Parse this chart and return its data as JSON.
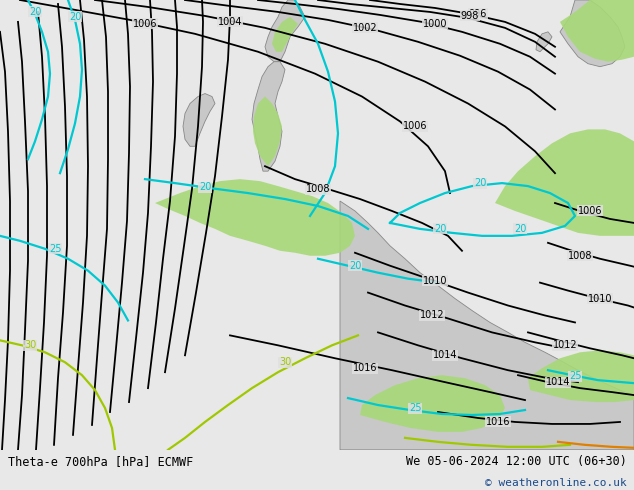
{
  "title_left": "Theta-e 700hPa [hPa] ECMWF",
  "title_right": "We 05-06-2024 12:00 UTC (06+30)",
  "copyright": "© weatheronline.co.uk",
  "bg_color": "#e8e8e8",
  "map_bg": "#e0e0e0",
  "land_color": "#c8c8c8",
  "coast_color": "#888888",
  "green_color": "#a8d878",
  "isobar_color": "#000000",
  "theta_cyan": "#00c8d0",
  "theta_yellow": "#a0c800",
  "theta_orange": "#e08000",
  "title_fontsize": 8.5,
  "label_fontsize": 7,
  "isobar_lw": 1.3,
  "theta_lw": 1.6,
  "coast_lw": 0.6
}
